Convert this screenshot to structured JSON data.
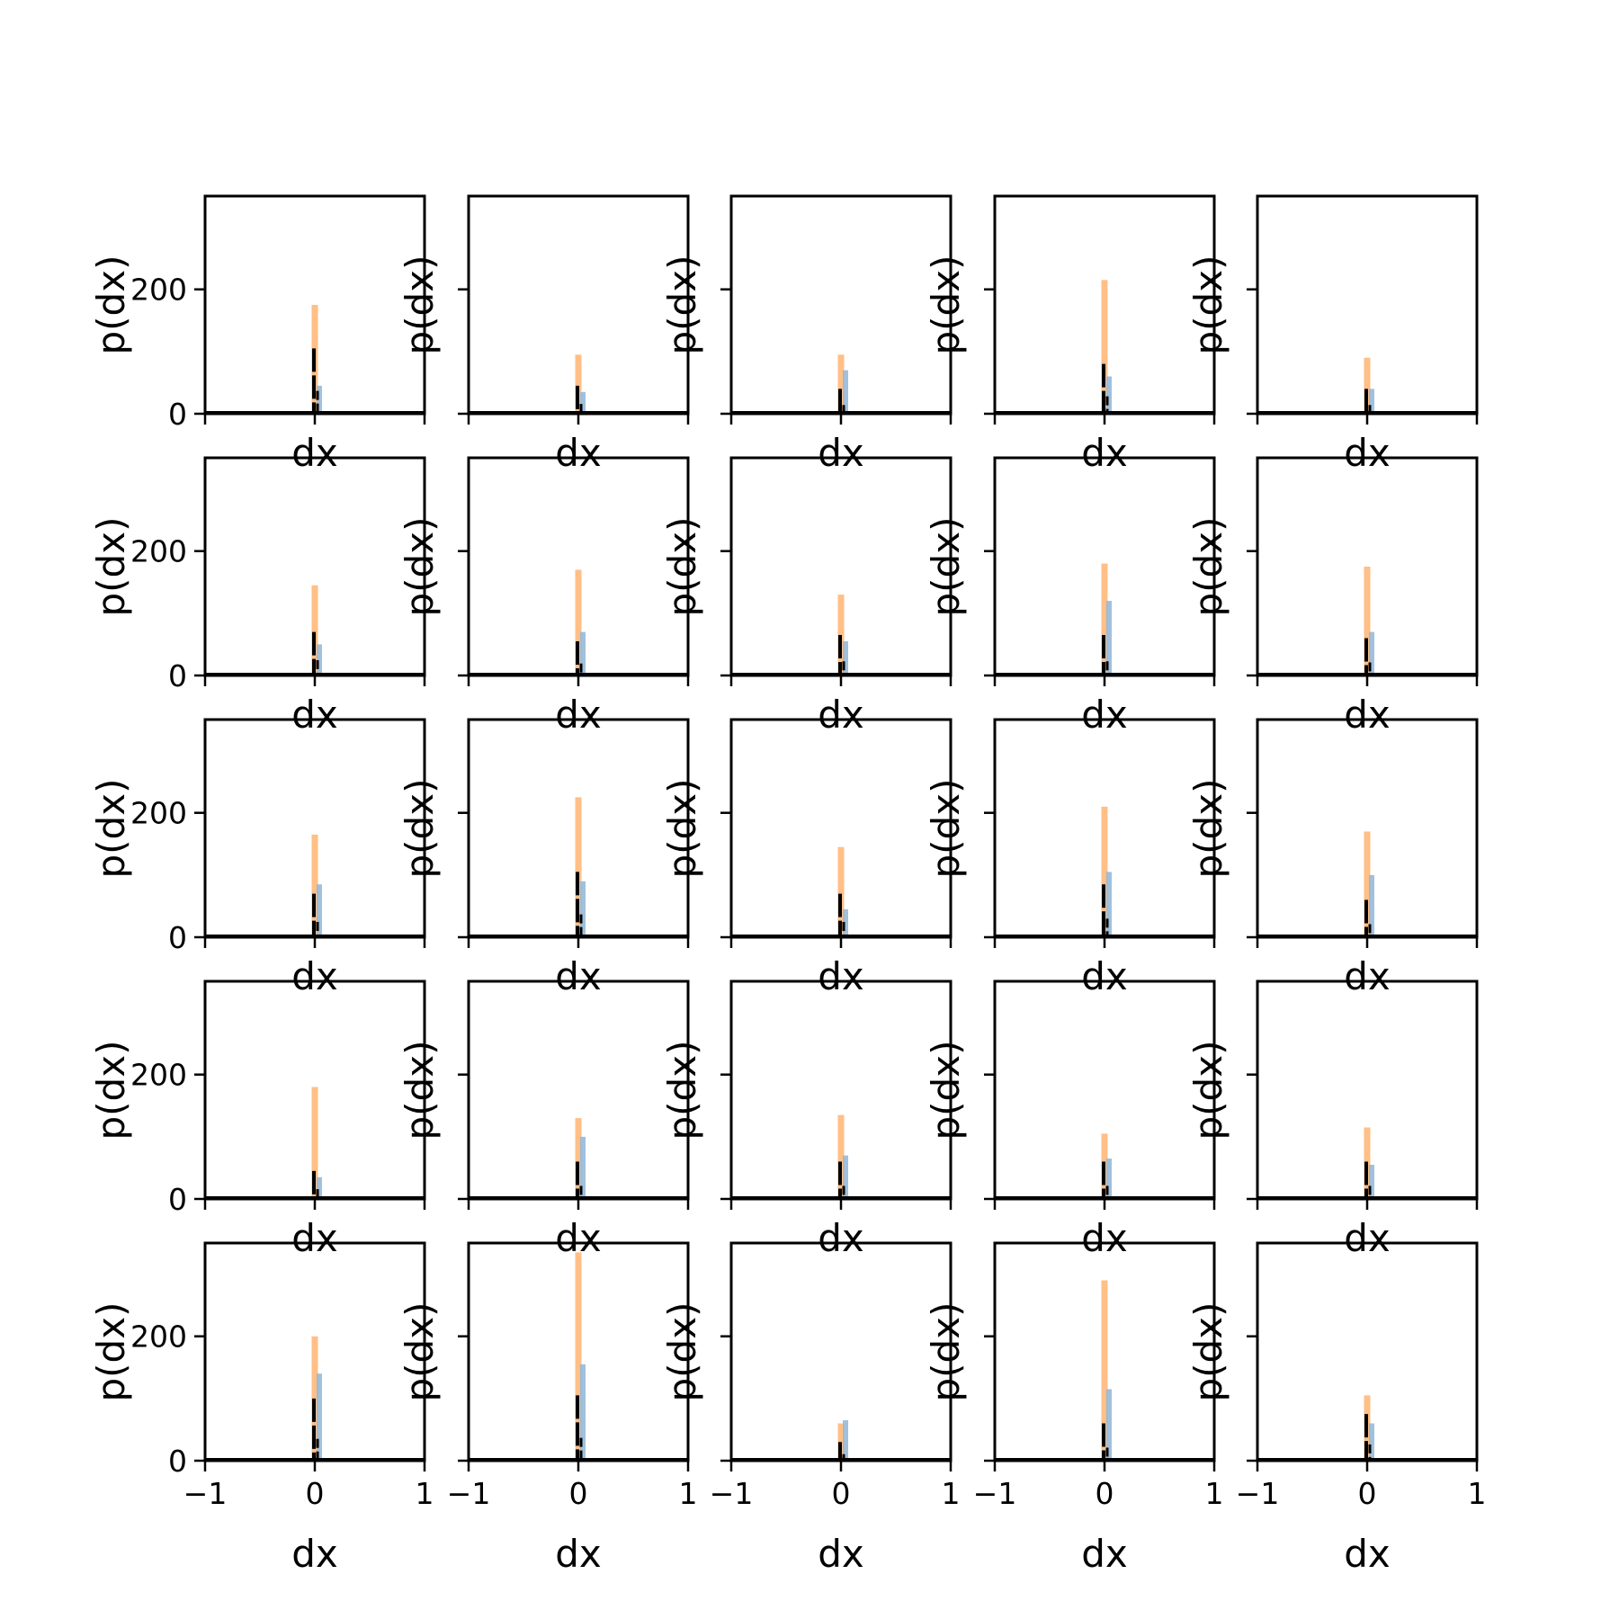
{
  "figure": {
    "rows": 5,
    "cols": 5,
    "colors": {
      "orange": "#ffbf86",
      "blue": "#8fb6d8",
      "black": "#000000",
      "frame": "#000000"
    }
  },
  "chart_data": {
    "type": "histogram-grid",
    "xlabel": "dx",
    "ylabel": "p(dx)",
    "xlim": [
      -1,
      1
    ],
    "ylim": [
      0,
      350
    ],
    "xticks": [
      -1,
      0,
      1
    ],
    "xtick_labels": [
      "−1",
      "0",
      "1"
    ],
    "yticks": [
      0,
      200
    ],
    "ytick_labels": [
      "0",
      "200"
    ],
    "panels": [
      {
        "orange": 175,
        "blue": 45,
        "black": 105
      },
      {
        "orange": 95,
        "blue": 35,
        "black": 45
      },
      {
        "orange": 95,
        "blue": 70,
        "black": 40
      },
      {
        "orange": 215,
        "blue": 60,
        "black": 80
      },
      {
        "orange": 90,
        "blue": 40,
        "black": 40
      },
      {
        "orange": 145,
        "blue": 50,
        "black": 70
      },
      {
        "orange": 170,
        "blue": 70,
        "black": 55
      },
      {
        "orange": 130,
        "blue": 55,
        "black": 65
      },
      {
        "orange": 180,
        "blue": 120,
        "black": 65
      },
      {
        "orange": 175,
        "blue": 70,
        "black": 60
      },
      {
        "orange": 165,
        "blue": 85,
        "black": 70
      },
      {
        "orange": 225,
        "blue": 90,
        "black": 105
      },
      {
        "orange": 145,
        "blue": 45,
        "black": 70
      },
      {
        "orange": 210,
        "blue": 105,
        "black": 85
      },
      {
        "orange": 170,
        "blue": 100,
        "black": 60
      },
      {
        "orange": 180,
        "blue": 35,
        "black": 45
      },
      {
        "orange": 130,
        "blue": 100,
        "black": 60
      },
      {
        "orange": 135,
        "blue": 70,
        "black": 60
      },
      {
        "orange": 105,
        "blue": 65,
        "black": 60
      },
      {
        "orange": 115,
        "blue": 55,
        "black": 60
      },
      {
        "orange": 200,
        "blue": 140,
        "black": 100
      },
      {
        "orange": 335,
        "blue": 155,
        "black": 105
      },
      {
        "orange": 60,
        "blue": 65,
        "black": 30
      },
      {
        "orange": 290,
        "blue": 115,
        "black": 60
      },
      {
        "orange": 105,
        "blue": 60,
        "black": 75
      }
    ]
  }
}
